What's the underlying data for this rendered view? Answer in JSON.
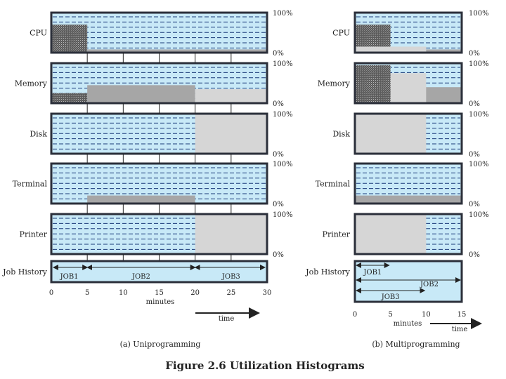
{
  "figure_title": "Figure 2.6  Utilization Histograms",
  "percent_labels": {
    "top": "100%",
    "bottom": "0%"
  },
  "colors": {
    "panel_bg": "#c8e9f7",
    "dash": "#1a3a7a",
    "border": "#2b2f3a",
    "busy_light": "#d6d6d6",
    "busy_mid": "#a6a6a6",
    "busy_dark": "#5a5a5a"
  },
  "chart_data": [
    {
      "type": "bar",
      "subtitle": "(a) Uniprogramming",
      "xlabel": "minutes",
      "time_label": "time",
      "xlim": [
        0,
        30
      ],
      "xticks": [
        0,
        5,
        10,
        15,
        20,
        25,
        30
      ],
      "ylim": [
        0,
        100
      ],
      "resources": [
        {
          "name": "CPU",
          "segments": [
            {
              "start": 0,
              "end": 5,
              "util": 70,
              "pattern": "dots"
            },
            {
              "start": 5,
              "end": 30,
              "util": 8,
              "pattern": "mid"
            }
          ]
        },
        {
          "name": "Memory",
          "segments": [
            {
              "start": 0,
              "end": 5,
              "util": 25,
              "pattern": "dots"
            },
            {
              "start": 5,
              "end": 20,
              "util": 45,
              "pattern": "mid"
            },
            {
              "start": 20,
              "end": 30,
              "util": 35,
              "pattern": "light"
            }
          ]
        },
        {
          "name": "Disk",
          "segments": [
            {
              "start": 20,
              "end": 30,
              "util": 100,
              "pattern": "light"
            }
          ]
        },
        {
          "name": "Terminal",
          "segments": [
            {
              "start": 5,
              "end": 20,
              "util": 20,
              "pattern": "mid"
            }
          ]
        },
        {
          "name": "Printer",
          "segments": [
            {
              "start": 20,
              "end": 30,
              "util": 100,
              "pattern": "light"
            }
          ]
        }
      ],
      "job_history_label": "Job History",
      "jobs": [
        {
          "name": "JOB1",
          "start": 0,
          "end": 5
        },
        {
          "name": "JOB2",
          "start": 5,
          "end": 20
        },
        {
          "name": "JOB3",
          "start": 20,
          "end": 30
        }
      ]
    },
    {
      "type": "bar",
      "subtitle": "(b) Multiprogramming",
      "xlabel": "minutes",
      "time_label": "time",
      "xlim": [
        0,
        15
      ],
      "xticks": [
        0,
        5,
        10,
        15
      ],
      "ylim": [
        0,
        100
      ],
      "resources": [
        {
          "name": "CPU",
          "segments": [
            {
              "start": 0,
              "end": 5,
              "util": 70,
              "pattern": "dots"
            },
            {
              "start": 0,
              "end": 10,
              "util": 15,
              "pattern": "light"
            },
            {
              "start": 10,
              "end": 15,
              "util": 8,
              "pattern": "mid"
            }
          ]
        },
        {
          "name": "Memory",
          "segments": [
            {
              "start": 0,
              "end": 15,
              "util": 40,
              "pattern": "mid"
            },
            {
              "start": 0,
              "end": 10,
              "util": 75,
              "pattern": "light"
            },
            {
              "start": 0,
              "end": 5,
              "util": 95,
              "pattern": "dots"
            }
          ]
        },
        {
          "name": "Disk",
          "segments": [
            {
              "start": 0,
              "end": 10,
              "util": 100,
              "pattern": "light"
            }
          ]
        },
        {
          "name": "Terminal",
          "segments": [
            {
              "start": 0,
              "end": 15,
              "util": 20,
              "pattern": "mid"
            }
          ]
        },
        {
          "name": "Printer",
          "segments": [
            {
              "start": 0,
              "end": 10,
              "util": 100,
              "pattern": "light"
            }
          ]
        }
      ],
      "job_history_label": "Job History",
      "jobs": [
        {
          "name": "JOB1",
          "start": 0,
          "end": 5
        },
        {
          "name": "JOB2",
          "start": 0,
          "end": 15
        },
        {
          "name": "JOB3",
          "start": 0,
          "end": 10
        }
      ]
    }
  ]
}
